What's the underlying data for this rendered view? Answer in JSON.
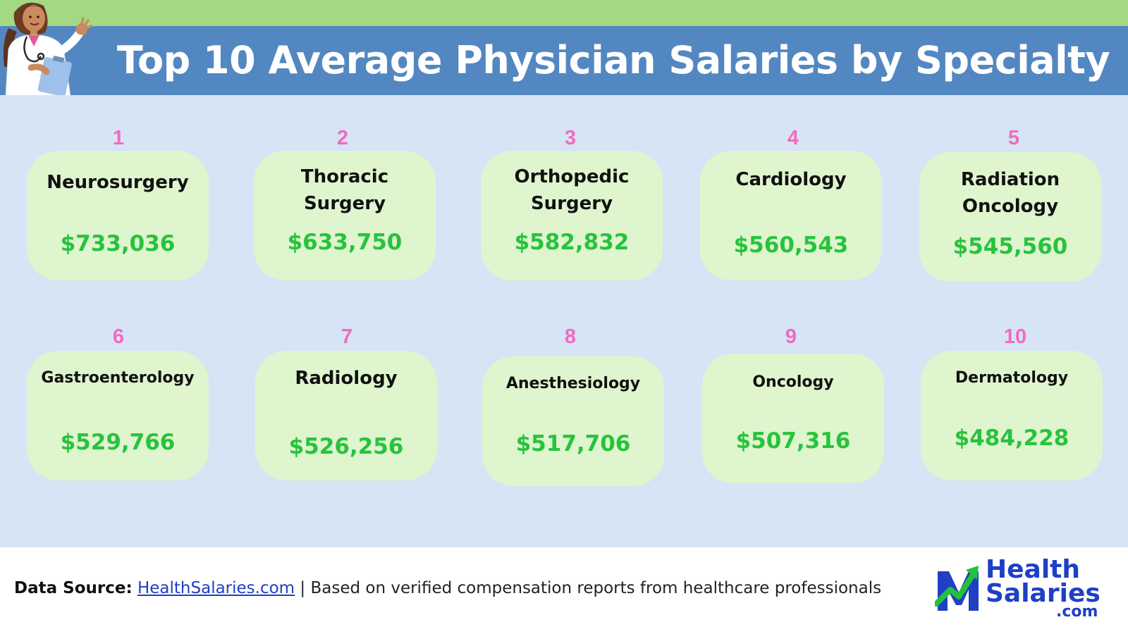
{
  "header": {
    "title": "Top 10 Average Physician Salaries by Specialty"
  },
  "colors": {
    "top_strip": "#a3d983",
    "title_band": "#5387c1",
    "background": "#d6e4f5",
    "card": "#dff5ce",
    "rank": "#f06bbf",
    "salary": "#27c33d",
    "logo": "#1f3fc4"
  },
  "illustration": "doctor-with-clipboard-icon",
  "specialties": [
    {
      "rank": "1",
      "name": "Neurosurgery",
      "salary": "$733,036"
    },
    {
      "rank": "2",
      "name": "Thoracic Surgery",
      "salary": "$633,750"
    },
    {
      "rank": "3",
      "name": "Orthopedic Surgery",
      "salary": "$582,832"
    },
    {
      "rank": "4",
      "name": "Cardiology",
      "salary": "$560,543"
    },
    {
      "rank": "5",
      "name": "Radiation Oncology",
      "salary": "$545,560"
    },
    {
      "rank": "6",
      "name": "Gastroenterology",
      "salary": "$529,766"
    },
    {
      "rank": "7",
      "name": "Radiology",
      "salary": "$526,256"
    },
    {
      "rank": "8",
      "name": "Anesthesiology",
      "salary": "$517,706"
    },
    {
      "rank": "9",
      "name": "Oncology",
      "salary": "$507,316"
    },
    {
      "rank": "10",
      "name": "Dermatology",
      "salary": "$484,228"
    }
  ],
  "footer": {
    "source_label": "Data Source:",
    "source_link": "HealthSalaries.com",
    "source_note": "| Based on verified compensation reports from healthcare professionals"
  },
  "logo": {
    "line1": "Health",
    "line2": "Salaries",
    "line3": ".com",
    "icon": "growth-arrow-icon"
  }
}
